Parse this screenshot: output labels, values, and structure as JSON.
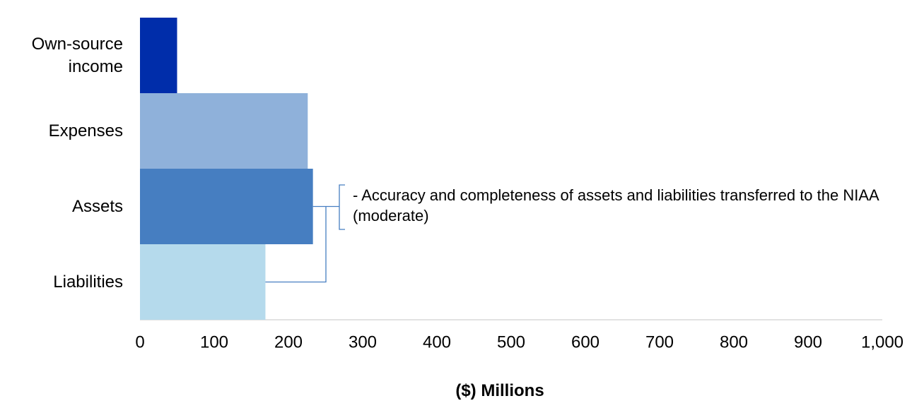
{
  "chart_data": {
    "type": "hbar",
    "categories": [
      "Own-source income",
      "Expenses",
      "Assets",
      "Liabilities"
    ],
    "values": [
      50,
      226,
      233,
      169
    ],
    "colors": [
      "#002daa",
      "#8fb1da",
      "#467ec1",
      "#b5daec"
    ],
    "xlim": [
      0,
      1000
    ],
    "xticks": [
      0,
      100,
      200,
      300,
      400,
      500,
      600,
      700,
      800,
      900,
      {
        "value": 1000,
        "label": "1,000"
      }
    ],
    "xlabel": "($) Millions",
    "annotation": "- Accuracy and completeness of assets and liabilities transferred to the NIAA (moderate)"
  }
}
